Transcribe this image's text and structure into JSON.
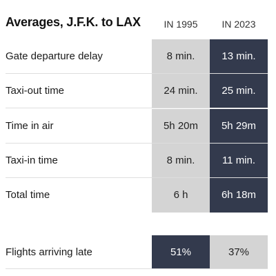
{
  "chart_data": {
    "type": "table",
    "title": "Averages, J.F.K. to LAX",
    "columns": [
      "IN 1995",
      "IN 2023"
    ],
    "rows": [
      {
        "label": "Gate departure delay",
        "values": [
          "8 min.",
          "13 min."
        ]
      },
      {
        "label": "Taxi-out time",
        "values": [
          "24 min.",
          "25 min."
        ]
      },
      {
        "label": "Time in air",
        "values": [
          "5h 20m",
          "5h 29m"
        ]
      },
      {
        "label": "Taxi-in time",
        "values": [
          "8 min.",
          "11 min."
        ]
      },
      {
        "label": "Total time",
        "values": [
          "6 h",
          "6h 18m"
        ]
      }
    ],
    "late_row": {
      "label": "Flights arriving late",
      "values": [
        "51%",
        "37%"
      ]
    }
  },
  "colors": {
    "light_cell": "#d4d4d4",
    "dark_cell": "#333a4d"
  }
}
